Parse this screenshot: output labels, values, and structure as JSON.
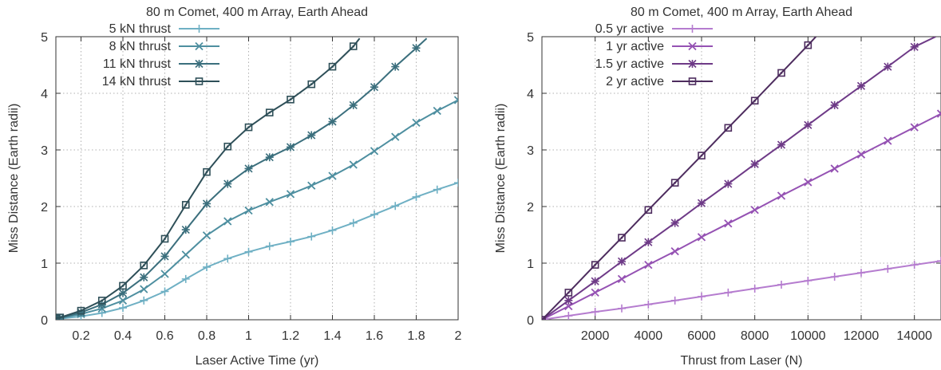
{
  "chart_data": [
    {
      "type": "line",
      "title": "80 m Comet, 400 m Array, Earth Ahead",
      "xlabel": "Laser Active Time (yr)",
      "ylabel": "Miss Distance (Earth radii)",
      "xlim": [
        0.08,
        2.0
      ],
      "ylim": [
        0,
        5
      ],
      "xticks": [
        0.2,
        0.4,
        0.6,
        0.8,
        1,
        1.2,
        1.4,
        1.6,
        1.8,
        2
      ],
      "xtick_labels": [
        "0.2",
        "0.4",
        "0.6",
        "0.8",
        "1",
        "1.2",
        "1.4",
        "1.6",
        "1.8",
        "2"
      ],
      "yticks": [
        0,
        1,
        2,
        3,
        4,
        5
      ],
      "ytick_labels": [
        "0",
        "1",
        "2",
        "3",
        "4",
        "5"
      ],
      "grid": true,
      "legend_position": "top-left",
      "series": [
        {
          "name": "5 kN thrust",
          "color": "#6fb0c4",
          "marker": "plus",
          "x": [
            0.08,
            0.1,
            0.2,
            0.3,
            0.4,
            0.5,
            0.6,
            0.7,
            0.8,
            0.9,
            1.0,
            1.1,
            1.2,
            1.3,
            1.4,
            1.5,
            1.6,
            1.7,
            1.8,
            1.9,
            2.0
          ],
          "y": [
            0.01,
            0.02,
            0.06,
            0.12,
            0.21,
            0.34,
            0.5,
            0.72,
            0.93,
            1.08,
            1.2,
            1.3,
            1.38,
            1.47,
            1.58,
            1.71,
            1.86,
            2.01,
            2.17,
            2.3,
            2.42
          ]
        },
        {
          "name": "8 kN thrust",
          "color": "#4e8fa0",
          "marker": "cross",
          "x": [
            0.08,
            0.1,
            0.2,
            0.3,
            0.4,
            0.5,
            0.6,
            0.7,
            0.8,
            0.9,
            1.0,
            1.1,
            1.2,
            1.3,
            1.4,
            1.5,
            1.6,
            1.7,
            1.8,
            1.9,
            2.0
          ],
          "y": [
            0.02,
            0.03,
            0.1,
            0.2,
            0.34,
            0.54,
            0.81,
            1.15,
            1.49,
            1.74,
            1.93,
            2.08,
            2.22,
            2.37,
            2.54,
            2.74,
            2.98,
            3.23,
            3.48,
            3.69,
            3.88
          ]
        },
        {
          "name": "11 kN thrust",
          "color": "#3b6f7d",
          "marker": "star",
          "x": [
            0.08,
            0.1,
            0.2,
            0.3,
            0.4,
            0.5,
            0.6,
            0.7,
            0.8,
            0.9,
            1.0,
            1.1,
            1.2,
            1.3,
            1.4,
            1.5,
            1.6,
            1.7,
            1.8,
            1.85
          ],
          "y": [
            0.02,
            0.03,
            0.13,
            0.27,
            0.47,
            0.75,
            1.12,
            1.59,
            2.05,
            2.4,
            2.67,
            2.87,
            3.05,
            3.26,
            3.5,
            3.79,
            4.11,
            4.47,
            4.8,
            4.97
          ]
        },
        {
          "name": "14 kN thrust",
          "color": "#2e4f58",
          "marker": "square",
          "x": [
            0.08,
            0.1,
            0.2,
            0.3,
            0.4,
            0.5,
            0.6,
            0.7,
            0.8,
            0.9,
            1.0,
            1.1,
            1.2,
            1.3,
            1.4,
            1.5,
            1.53
          ],
          "y": [
            0.03,
            0.04,
            0.16,
            0.34,
            0.6,
            0.96,
            1.43,
            2.03,
            2.61,
            3.06,
            3.4,
            3.66,
            3.89,
            4.16,
            4.47,
            4.83,
            4.97
          ]
        }
      ]
    },
    {
      "type": "line",
      "title": "80 m Comet, 400 m Array, Earth Ahead",
      "xlabel": "Thrust from Laser (N)",
      "ylabel": "Miss Distance (Earth radii)",
      "xlim": [
        0,
        15000
      ],
      "ylim": [
        0,
        5
      ],
      "xticks": [
        2000,
        4000,
        6000,
        8000,
        10000,
        12000,
        14000
      ],
      "xtick_labels": [
        "2000",
        "4000",
        "6000",
        "8000",
        "10000",
        "12000",
        "14000"
      ],
      "yticks": [
        0,
        1,
        2,
        3,
        4,
        5
      ],
      "ytick_labels": [
        "0",
        "1",
        "2",
        "3",
        "4",
        "5"
      ],
      "grid": true,
      "legend_position": "top-left",
      "series": [
        {
          "name": "0.5 yr active",
          "color": "#b57ccf",
          "marker": "plus",
          "x": [
            0,
            1000,
            2000,
            3000,
            4000,
            5000,
            6000,
            7000,
            8000,
            9000,
            10000,
            11000,
            12000,
            13000,
            14000,
            15000
          ],
          "y": [
            0,
            0.07,
            0.14,
            0.2,
            0.27,
            0.34,
            0.41,
            0.48,
            0.55,
            0.62,
            0.69,
            0.76,
            0.83,
            0.9,
            0.97,
            1.04
          ]
        },
        {
          "name": "1 yr active",
          "color": "#9552b3",
          "marker": "cross",
          "x": [
            0,
            1000,
            2000,
            3000,
            4000,
            5000,
            6000,
            7000,
            8000,
            9000,
            10000,
            11000,
            12000,
            13000,
            14000,
            15000
          ],
          "y": [
            0,
            0.24,
            0.48,
            0.72,
            0.97,
            1.21,
            1.46,
            1.7,
            1.94,
            2.19,
            2.43,
            2.67,
            2.92,
            3.16,
            3.4,
            3.64
          ]
        },
        {
          "name": "1.5 yr active",
          "color": "#6e3a87",
          "marker": "star",
          "x": [
            0,
            1000,
            2000,
            3000,
            4000,
            5000,
            6000,
            7000,
            8000,
            9000,
            10000,
            11000,
            12000,
            13000,
            14000,
            14800
          ],
          "y": [
            0,
            0.34,
            0.68,
            1.03,
            1.37,
            1.71,
            2.06,
            2.4,
            2.75,
            3.09,
            3.44,
            3.79,
            4.13,
            4.47,
            4.82,
            5.0
          ]
        },
        {
          "name": "2 yr active",
          "color": "#4d2c5e",
          "marker": "square",
          "x": [
            0,
            1000,
            2000,
            3000,
            4000,
            5000,
            6000,
            7000,
            8000,
            9000,
            10000,
            10300
          ],
          "y": [
            0,
            0.48,
            0.97,
            1.45,
            1.94,
            2.42,
            2.9,
            3.39,
            3.87,
            4.36,
            4.85,
            5.0
          ]
        }
      ]
    }
  ]
}
